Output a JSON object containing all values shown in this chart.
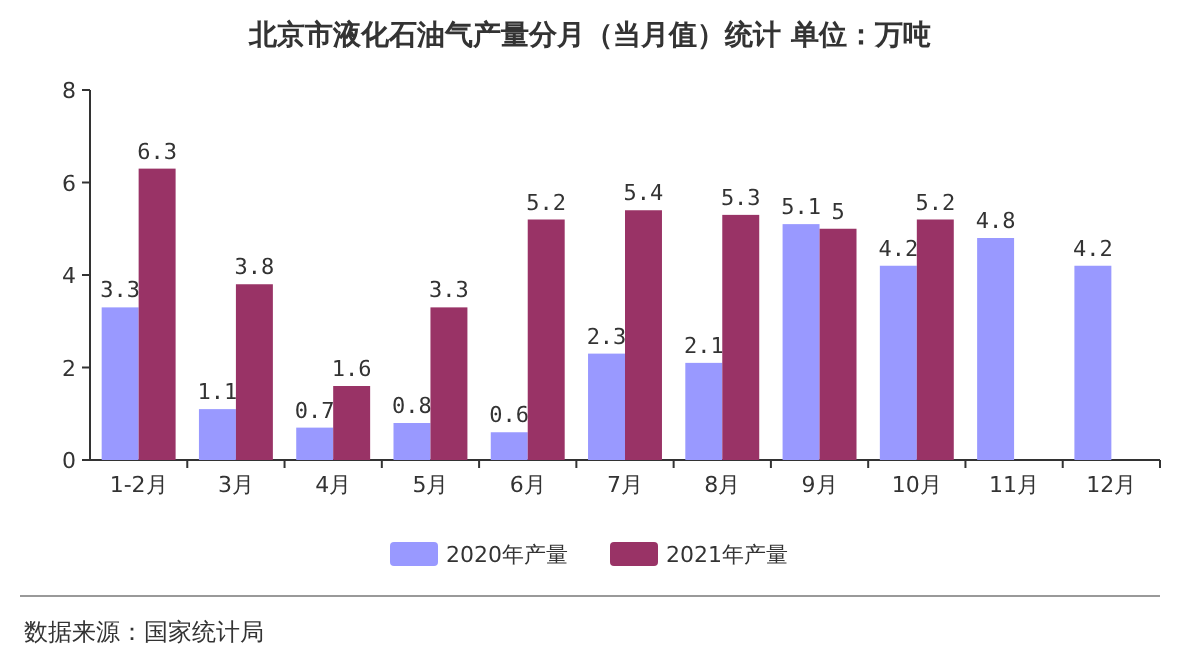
{
  "chart_data": {
    "type": "bar",
    "title": "北京市液化石油气产量分月（当月值）统计  单位：万吨",
    "categories": [
      "1-2月",
      "3月",
      "4月",
      "5月",
      "6月",
      "7月",
      "8月",
      "9月",
      "10月",
      "11月",
      "12月"
    ],
    "series": [
      {
        "name": "2020年产量",
        "color": "#9999ff",
        "values": [
          3.3,
          1.1,
          0.7,
          0.8,
          0.6,
          2.3,
          2.1,
          5.1,
          4.2,
          4.8,
          4.2
        ]
      },
      {
        "name": "2021年产量",
        "color": "#993366",
        "values": [
          6.3,
          3.8,
          1.6,
          3.3,
          5.2,
          5.4,
          5.3,
          5,
          5.2,
          null,
          null
        ]
      }
    ],
    "ylim": [
      0,
      8
    ],
    "yticks": [
      0,
      2,
      4,
      6,
      8
    ],
    "data_labels": true,
    "legend": "bottom",
    "annotations": [
      "数据来源：国家统计局"
    ]
  }
}
